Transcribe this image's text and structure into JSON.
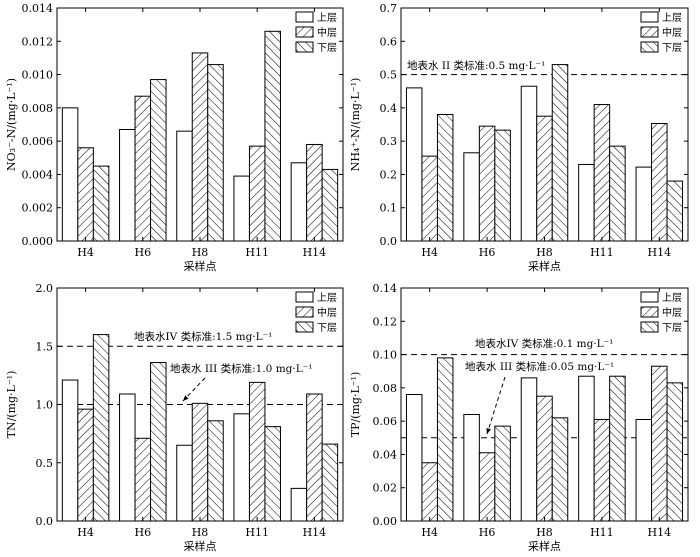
{
  "chart_data": [
    {
      "type": "bar",
      "categories": [
        "H4",
        "H6",
        "H8",
        "H11",
        "H14"
      ],
      "series": [
        {
          "name": "上层",
          "values": [
            0.008,
            0.0067,
            0.0066,
            0.0039,
            0.0047
          ]
        },
        {
          "name": "中层",
          "values": [
            0.0056,
            0.0087,
            0.0113,
            0.0057,
            0.0058
          ]
        },
        {
          "name": "下层",
          "values": [
            0.0045,
            0.0097,
            0.0106,
            0.0126,
            0.0043
          ]
        }
      ],
      "xlabel": "采样点",
      "ylabel": "NO₃⁻-N/(mg·L⁻¹)",
      "ylim": [
        0,
        0.014
      ],
      "yticks": [
        "0.000",
        "0.002",
        "0.004",
        "0.006",
        "0.008",
        "0.010",
        "0.012",
        "0.014"
      ],
      "legend": "top-right",
      "reference_lines": []
    },
    {
      "type": "bar",
      "categories": [
        "H4",
        "H6",
        "H8",
        "H11",
        "H14"
      ],
      "series": [
        {
          "name": "上层",
          "values": [
            0.46,
            0.265,
            0.465,
            0.23,
            0.222
          ]
        },
        {
          "name": "中层",
          "values": [
            0.255,
            0.345,
            0.375,
            0.41,
            0.353
          ]
        },
        {
          "name": "下层",
          "values": [
            0.38,
            0.333,
            0.53,
            0.285,
            0.18
          ]
        }
      ],
      "xlabel": "采样点",
      "ylabel": "NH₄⁺-N/(mg·L⁻¹)",
      "ylim": [
        0,
        0.7
      ],
      "yticks": [
        "0.0",
        "0.1",
        "0.2",
        "0.3",
        "0.4",
        "0.5",
        "0.6",
        "0.7"
      ],
      "legend": "top-right",
      "reference_lines": [
        {
          "value": 0.5,
          "label": "地表水 II 类标准:0.5 mg·L⁻¹"
        }
      ]
    },
    {
      "type": "bar",
      "categories": [
        "H4",
        "H6",
        "H8",
        "H11",
        "H14"
      ],
      "series": [
        {
          "name": "上层",
          "values": [
            1.21,
            1.09,
            0.65,
            0.92,
            0.28
          ]
        },
        {
          "name": "中层",
          "values": [
            0.96,
            0.71,
            1.01,
            1.19,
            1.09
          ]
        },
        {
          "name": "下层",
          "values": [
            1.6,
            1.36,
            0.86,
            0.81,
            0.66
          ]
        }
      ],
      "xlabel": "采样点",
      "ylabel": "TN/(mg·L⁻¹)",
      "ylim": [
        0,
        2.0
      ],
      "yticks": [
        "0.0",
        "0.5",
        "1.0",
        "1.5",
        "2.0"
      ],
      "legend": "top-right",
      "reference_lines": [
        {
          "value": 1.5,
          "label": "地表水IV 类标准:1.5 mg·L⁻¹"
        },
        {
          "value": 1.0,
          "label": "地表水 III 类标准:1.0 mg·L⁻¹"
        }
      ]
    },
    {
      "type": "bar",
      "categories": [
        "H4",
        "H6",
        "H8",
        "H11",
        "H14"
      ],
      "series": [
        {
          "name": "上层",
          "values": [
            0.076,
            0.064,
            0.086,
            0.087,
            0.061
          ]
        },
        {
          "name": "中层",
          "values": [
            0.035,
            0.041,
            0.075,
            0.061,
            0.093
          ]
        },
        {
          "name": "下层",
          "values": [
            0.098,
            0.057,
            0.062,
            0.087,
            0.083
          ]
        }
      ],
      "xlabel": "采样点",
      "ylabel": "TP/(mg·L⁻¹)",
      "ylim": [
        0,
        0.14
      ],
      "yticks": [
        "0.00",
        "0.02",
        "0.04",
        "0.06",
        "0.08",
        "0.10",
        "0.12",
        "0.14"
      ],
      "legend": "top-right",
      "reference_lines": [
        {
          "value": 0.1,
          "label": "地表水IV 类标准:0.1 mg·L⁻¹"
        },
        {
          "value": 0.05,
          "label": "地表水 III 类标准:0.05 mg·L⁻¹"
        }
      ]
    }
  ]
}
